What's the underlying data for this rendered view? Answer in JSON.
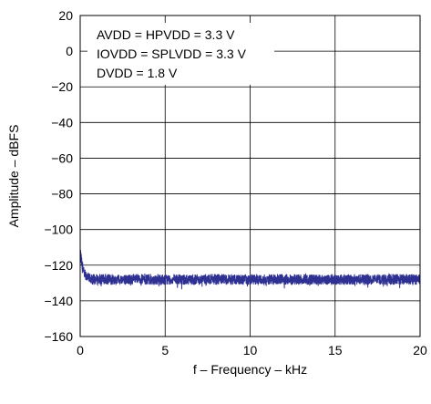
{
  "chart_data": {
    "type": "line",
    "title": "",
    "xlabel": "f – Frequency – kHz",
    "ylabel": "Amplitude – dBFS",
    "xlim": [
      0,
      20
    ],
    "ylim": [
      -160,
      20
    ],
    "x_ticks": [
      0,
      5,
      10,
      15,
      20
    ],
    "y_ticks": [
      20,
      0,
      -20,
      -40,
      -60,
      -80,
      -100,
      -120,
      -140,
      -160
    ],
    "x_tick_labels": [
      "0",
      "5",
      "10",
      "15",
      "20"
    ],
    "y_tick_labels": [
      "20",
      "0",
      "−20",
      "−40",
      "−60",
      "−80",
      "−100",
      "−120",
      "−140",
      "−160"
    ],
    "grid": true,
    "legend": "none",
    "annotations": [
      "AVDD = HPVDD = 3.3 V",
      "IOVDD = SPLVDD = 3.3 V",
      "DVDD = 1.8 V"
    ],
    "series_color": "#2e3192",
    "series": [
      {
        "x": [
          0.02,
          0.05,
          0.1,
          0.15,
          0.2,
          0.3,
          0.4,
          0.5,
          0.75,
          1,
          2,
          3,
          4,
          5,
          6,
          7,
          8,
          9,
          10,
          11,
          12,
          13,
          14,
          15,
          16,
          17,
          18,
          19,
          20
        ],
        "y": [
          -112,
          -116,
          -119,
          -121,
          -123,
          -125,
          -126,
          -127,
          -128,
          -128,
          -128,
          -128,
          -128,
          -128,
          -128,
          -128,
          -128,
          -128,
          -128,
          -128,
          -128,
          -128,
          -128,
          -128,
          -128,
          -128,
          -128,
          -128,
          -128
        ]
      }
    ]
  }
}
